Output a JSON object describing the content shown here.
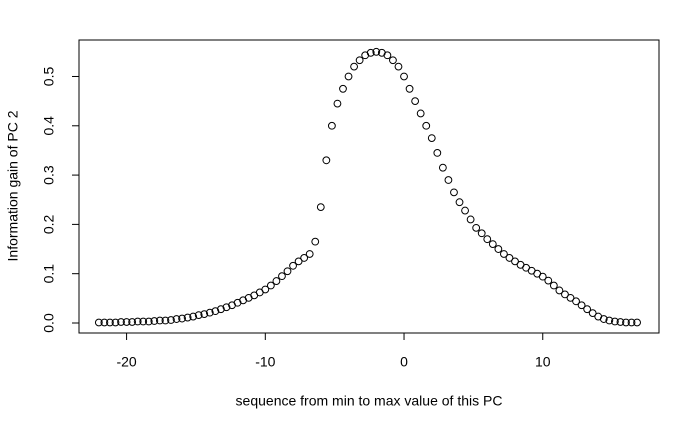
{
  "chart_data": {
    "type": "scatter",
    "x_label": "sequence from min to max value of this PC",
    "y_label": "Information gain of PC  2",
    "x": [
      -22.0,
      -21.6,
      -21.2,
      -20.8,
      -20.4,
      -20.0,
      -19.6,
      -19.2,
      -18.8,
      -18.4,
      -18.0,
      -17.6,
      -17.2,
      -16.8,
      -16.4,
      -16.0,
      -15.6,
      -15.2,
      -14.8,
      -14.4,
      -14.0,
      -13.6,
      -13.2,
      -12.8,
      -12.4,
      -12.0,
      -11.6,
      -11.2,
      -10.8,
      -10.4,
      -10.0,
      -9.6,
      -9.2,
      -8.8,
      -8.4,
      -8.0,
      -7.6,
      -7.2,
      -6.8,
      -6.4,
      -6.0,
      -5.6,
      -5.2,
      -4.8,
      -4.4,
      -4.0,
      -3.6,
      -3.2,
      -2.8,
      -2.4,
      -2.0,
      -1.6,
      -1.2,
      -0.8,
      -0.4,
      0.0,
      0.4,
      0.8,
      1.2,
      1.6,
      2.0,
      2.4,
      2.8,
      3.2,
      3.6,
      4.0,
      4.4,
      4.8,
      5.2,
      5.6,
      6.0,
      6.4,
      6.8,
      7.2,
      7.6,
      8.0,
      8.4,
      8.8,
      9.2,
      9.6,
      10.0,
      10.4,
      10.8,
      11.2,
      11.6,
      12.0,
      12.4,
      12.8,
      13.2,
      13.6,
      14.0,
      14.4,
      14.8,
      15.2,
      15.6,
      16.0,
      16.4,
      16.8
    ],
    "values": [
      0.001,
      0.001,
      0.001,
      0.001,
      0.002,
      0.002,
      0.002,
      0.003,
      0.003,
      0.003,
      0.004,
      0.005,
      0.005,
      0.006,
      0.008,
      0.009,
      0.011,
      0.013,
      0.016,
      0.018,
      0.021,
      0.024,
      0.028,
      0.032,
      0.036,
      0.041,
      0.046,
      0.051,
      0.056,
      0.062,
      0.068,
      0.076,
      0.085,
      0.095,
      0.105,
      0.116,
      0.125,
      0.132,
      0.14,
      0.165,
      0.235,
      0.33,
      0.4,
      0.445,
      0.475,
      0.5,
      0.52,
      0.533,
      0.543,
      0.548,
      0.55,
      0.548,
      0.543,
      0.533,
      0.52,
      0.5,
      0.475,
      0.45,
      0.425,
      0.4,
      0.375,
      0.345,
      0.315,
      0.29,
      0.265,
      0.245,
      0.228,
      0.21,
      0.193,
      0.182,
      0.17,
      0.16,
      0.15,
      0.14,
      0.132,
      0.125,
      0.118,
      0.112,
      0.106,
      0.1,
      0.094,
      0.086,
      0.076,
      0.066,
      0.058,
      0.051,
      0.044,
      0.036,
      0.028,
      0.02,
      0.013,
      0.008,
      0.005,
      0.003,
      0.002,
      0.001,
      0.001,
      0.001
    ],
    "color": "#000000",
    "xlim": [
      -23.43,
      18.38
    ],
    "xticks": [
      -20,
      -10,
      0,
      10
    ],
    "ylim": [
      -0.0203,
      0.574
    ],
    "yticks": [
      {
        "value": 0,
        "label": "0.0"
      },
      0.1,
      0.2,
      0.3,
      0.4,
      0.5
    ]
  }
}
